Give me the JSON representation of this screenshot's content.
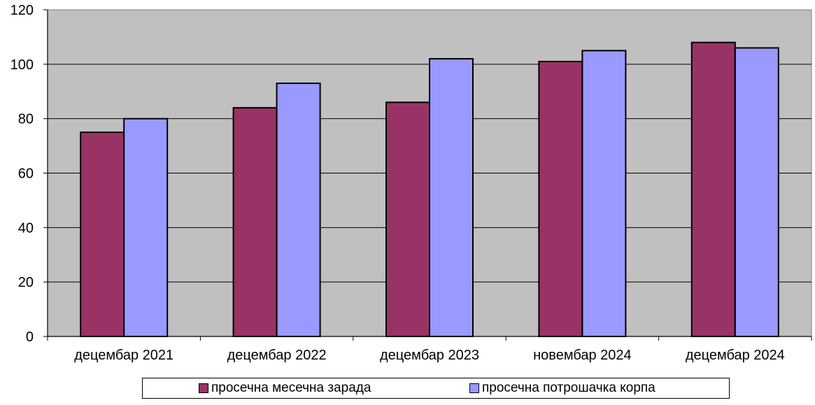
{
  "chart_data": {
    "type": "bar",
    "title": "",
    "categories": [
      "децембар 2021",
      "децембар 2022",
      "децембар 2023",
      "новембар 2024",
      "децембар 2024"
    ],
    "series": [
      {
        "name": "просечна месечна зарада",
        "color": "#993366",
        "values": [
          75,
          84,
          86,
          101,
          108
        ]
      },
      {
        "name": "просечна потрошачка корпа",
        "color": "#9999ff",
        "values": [
          80,
          93,
          102,
          105,
          106
        ]
      }
    ],
    "ylim": [
      0,
      120
    ],
    "yticks": [
      0,
      20,
      40,
      60,
      80,
      100,
      120
    ],
    "grid": true,
    "plot_background": "#c0c0c0",
    "legend_position": "bottom"
  }
}
